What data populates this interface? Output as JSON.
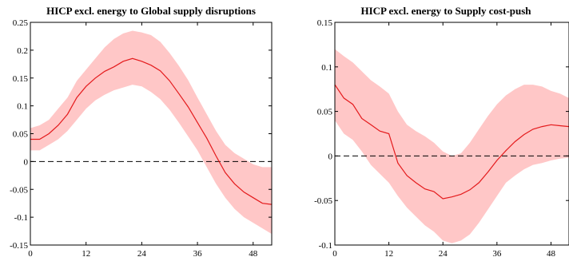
{
  "chart_data": [
    {
      "type": "line",
      "title": "HICP excl. energy to Global supply disruptions",
      "xlabel": "",
      "ylabel": "",
      "xlim": [
        0,
        52
      ],
      "ylim": [
        -0.15,
        0.25
      ],
      "xticks": [
        0,
        12,
        24,
        36,
        48
      ],
      "yticks": [
        0.25,
        0.2,
        0.15,
        0.1,
        0.05,
        0,
        -0.05,
        -0.1,
        -0.15
      ],
      "ytick_labels": [
        "0.25",
        "0.2",
        "0.15",
        "0.1",
        "0.05",
        "0",
        "-0.05",
        "-0.1",
        "-0.15"
      ],
      "zero_line": true,
      "grid": false,
      "colors": {
        "median": "#e41a1c",
        "band": "#ffc7c7",
        "zero": "#000000"
      },
      "median": {
        "x": [
          0,
          2,
          4,
          6,
          8,
          10,
          12,
          14,
          16,
          18,
          20,
          22,
          24,
          26,
          28,
          30,
          32,
          34,
          36,
          38,
          40,
          42,
          44,
          46,
          48,
          50,
          52
        ],
        "y": [
          0.04,
          0.04,
          0.05,
          0.065,
          0.085,
          0.115,
          0.135,
          0.15,
          0.162,
          0.17,
          0.18,
          0.185,
          0.18,
          0.173,
          0.163,
          0.145,
          0.122,
          0.098,
          0.07,
          0.042,
          0.01,
          -0.02,
          -0.04,
          -0.055,
          -0.065,
          -0.075,
          -0.077
        ]
      },
      "band_upper": {
        "x": [
          0,
          2,
          4,
          6,
          8,
          10,
          12,
          14,
          16,
          18,
          20,
          22,
          24,
          26,
          28,
          30,
          32,
          34,
          36,
          38,
          40,
          42,
          44,
          46,
          48,
          50,
          52
        ],
        "y": [
          0.06,
          0.065,
          0.075,
          0.095,
          0.115,
          0.145,
          0.165,
          0.185,
          0.205,
          0.22,
          0.23,
          0.235,
          0.232,
          0.227,
          0.215,
          0.195,
          0.172,
          0.146,
          0.115,
          0.085,
          0.055,
          0.03,
          0.015,
          0.005,
          -0.005,
          -0.01,
          -0.01
        ]
      },
      "band_lower": {
        "x": [
          0,
          2,
          4,
          6,
          8,
          10,
          12,
          14,
          16,
          18,
          20,
          22,
          24,
          26,
          28,
          30,
          32,
          34,
          36,
          38,
          40,
          42,
          44,
          46,
          48,
          50,
          52
        ],
        "y": [
          0.02,
          0.02,
          0.03,
          0.04,
          0.055,
          0.075,
          0.095,
          0.11,
          0.12,
          0.128,
          0.133,
          0.138,
          0.135,
          0.125,
          0.112,
          0.093,
          0.07,
          0.045,
          0.02,
          -0.01,
          -0.04,
          -0.065,
          -0.085,
          -0.1,
          -0.11,
          -0.12,
          -0.13
        ]
      }
    },
    {
      "type": "line",
      "title": "HICP excl. energy to Supply cost-push",
      "xlabel": "",
      "ylabel": "",
      "xlim": [
        0,
        52
      ],
      "ylim": [
        -0.1,
        0.15
      ],
      "xticks": [
        0,
        12,
        24,
        36,
        48
      ],
      "yticks": [
        0.15,
        0.1,
        0.05,
        0,
        -0.05,
        -0.1
      ],
      "ytick_labels": [
        "0.15",
        "0.1",
        "0.05",
        "0",
        "-0.05",
        "-0.1"
      ],
      "zero_line": true,
      "grid": false,
      "colors": {
        "median": "#e41a1c",
        "band": "#ffc7c7",
        "zero": "#000000"
      },
      "median": {
        "x": [
          0,
          2,
          4,
          6,
          8,
          10,
          12,
          14,
          16,
          18,
          20,
          22,
          24,
          26,
          28,
          30,
          32,
          34,
          36,
          38,
          40,
          42,
          44,
          46,
          48,
          50,
          52
        ],
        "y": [
          0.08,
          0.065,
          0.058,
          0.042,
          0.035,
          0.028,
          0.025,
          -0.008,
          -0.022,
          -0.03,
          -0.037,
          -0.04,
          -0.048,
          -0.046,
          -0.043,
          -0.038,
          -0.03,
          -0.018,
          -0.005,
          0.006,
          0.016,
          0.024,
          0.03,
          0.033,
          0.035,
          0.034,
          0.033
        ]
      },
      "band_upper": {
        "x": [
          0,
          2,
          4,
          6,
          8,
          10,
          12,
          14,
          16,
          18,
          20,
          22,
          24,
          26,
          28,
          30,
          32,
          34,
          36,
          38,
          40,
          42,
          44,
          46,
          48,
          50,
          52
        ],
        "y": [
          0.12,
          0.112,
          0.105,
          0.095,
          0.085,
          0.078,
          0.07,
          0.05,
          0.035,
          0.028,
          0.022,
          0.015,
          0.005,
          0.0,
          0.003,
          0.015,
          0.03,
          0.045,
          0.058,
          0.068,
          0.075,
          0.08,
          0.08,
          0.078,
          0.073,
          0.07,
          0.065
        ]
      },
      "band_lower": {
        "x": [
          0,
          2,
          4,
          6,
          8,
          10,
          12,
          14,
          16,
          18,
          20,
          22,
          24,
          26,
          28,
          30,
          32,
          34,
          36,
          38,
          40,
          42,
          44,
          46,
          48,
          50,
          52
        ],
        "y": [
          0.04,
          0.025,
          0.018,
          0.005,
          -0.01,
          -0.02,
          -0.03,
          -0.045,
          -0.058,
          -0.068,
          -0.078,
          -0.085,
          -0.095,
          -0.098,
          -0.095,
          -0.088,
          -0.075,
          -0.06,
          -0.045,
          -0.03,
          -0.022,
          -0.015,
          -0.01,
          -0.008,
          -0.005,
          -0.003,
          -0.002
        ]
      }
    }
  ]
}
